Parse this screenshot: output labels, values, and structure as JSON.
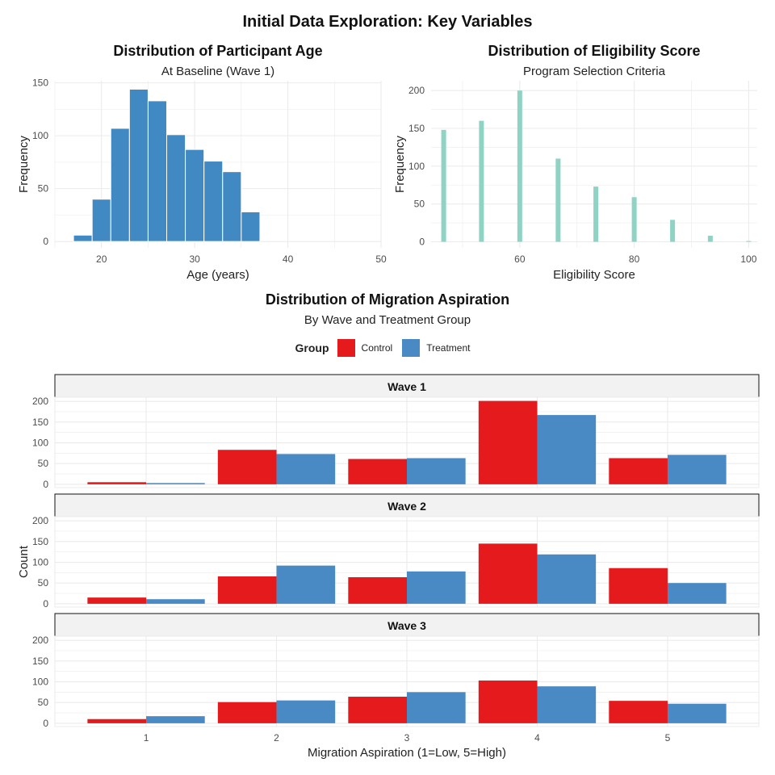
{
  "suptitle": "Initial Data Exploration: Key Variables",
  "colors": {
    "age_bar": "#4189c2",
    "elig_bar": "#8ed3c3",
    "control": "#e41a1c",
    "treatment": "#4a8ac4",
    "grid": "#ebebeb",
    "strip_bg": "#f2f2f2"
  },
  "chart_data": [
    {
      "id": "age",
      "type": "bar",
      "title": "Distribution of Participant Age",
      "subtitle": "At Baseline (Wave 1)",
      "xlabel": "Age (years)",
      "ylabel": "Frequency",
      "xlim": [
        15,
        50
      ],
      "ylim": [
        -6,
        152
      ],
      "xticks": [
        20,
        30,
        40,
        50
      ],
      "yticks": [
        0,
        50,
        100,
        150
      ],
      "bins": [
        {
          "x0": 17,
          "x1": 19,
          "count": 6
        },
        {
          "x0": 19,
          "x1": 21,
          "count": 40
        },
        {
          "x0": 21,
          "x1": 23,
          "count": 107
        },
        {
          "x0": 23,
          "x1": 25,
          "count": 144
        },
        {
          "x0": 25,
          "x1": 27,
          "count": 133
        },
        {
          "x0": 27,
          "x1": 29,
          "count": 101
        },
        {
          "x0": 29,
          "x1": 31,
          "count": 87
        },
        {
          "x0": 31,
          "x1": 33,
          "count": 76
        },
        {
          "x0": 33,
          "x1": 35,
          "count": 66
        },
        {
          "x0": 35,
          "x1": 37,
          "count": 28
        }
      ]
    },
    {
      "id": "elig",
      "type": "bar",
      "title": "Distribution of Eligibility Score",
      "subtitle": "Program Selection Criteria",
      "xlabel": "Eligibility Score",
      "ylabel": "Frequency",
      "xlim": [
        44.5,
        101.5
      ],
      "ylim": [
        -8,
        213
      ],
      "xticks": [
        60,
        80,
        100
      ],
      "yticks": [
        0,
        50,
        100,
        150,
        200
      ],
      "bars": [
        {
          "x": 46.7,
          "count": 148
        },
        {
          "x": 53.3,
          "count": 160
        },
        {
          "x": 60,
          "count": 200
        },
        {
          "x": 66.7,
          "count": 110
        },
        {
          "x": 73.3,
          "count": 73
        },
        {
          "x": 80,
          "count": 59
        },
        {
          "x": 86.7,
          "count": 29
        },
        {
          "x": 93.3,
          "count": 8
        },
        {
          "x": 100,
          "count": 1
        }
      ]
    },
    {
      "id": "migration",
      "type": "bar",
      "title": "Distribution of Migration Aspiration",
      "subtitle": "By Wave and Treatment Group",
      "xlabel": "Migration Aspiration (1=Low, 5=High)",
      "ylabel": "Count",
      "legend_title": "Group",
      "legend_position": "top",
      "categories": [
        "1",
        "2",
        "3",
        "4",
        "5"
      ],
      "yticks": [
        0,
        50,
        100,
        150,
        200
      ],
      "ylim": [
        -8,
        210
      ],
      "facets": [
        {
          "label": "Wave 1",
          "series": [
            {
              "name": "Control",
              "values": [
                5,
                83,
                61,
                201,
                63
              ]
            },
            {
              "name": "Treatment",
              "values": [
                3,
                73,
                63,
                167,
                71
              ]
            }
          ]
        },
        {
          "label": "Wave 2",
          "series": [
            {
              "name": "Control",
              "values": [
                15,
                66,
                64,
                145,
                86
              ]
            },
            {
              "name": "Treatment",
              "values": [
                11,
                92,
                78,
                119,
                50
              ]
            }
          ]
        },
        {
          "label": "Wave 3",
          "series": [
            {
              "name": "Control",
              "values": [
                10,
                51,
                64,
                103,
                54
              ]
            },
            {
              "name": "Treatment",
              "values": [
                17,
                55,
                75,
                89,
                47
              ]
            }
          ]
        }
      ]
    }
  ]
}
